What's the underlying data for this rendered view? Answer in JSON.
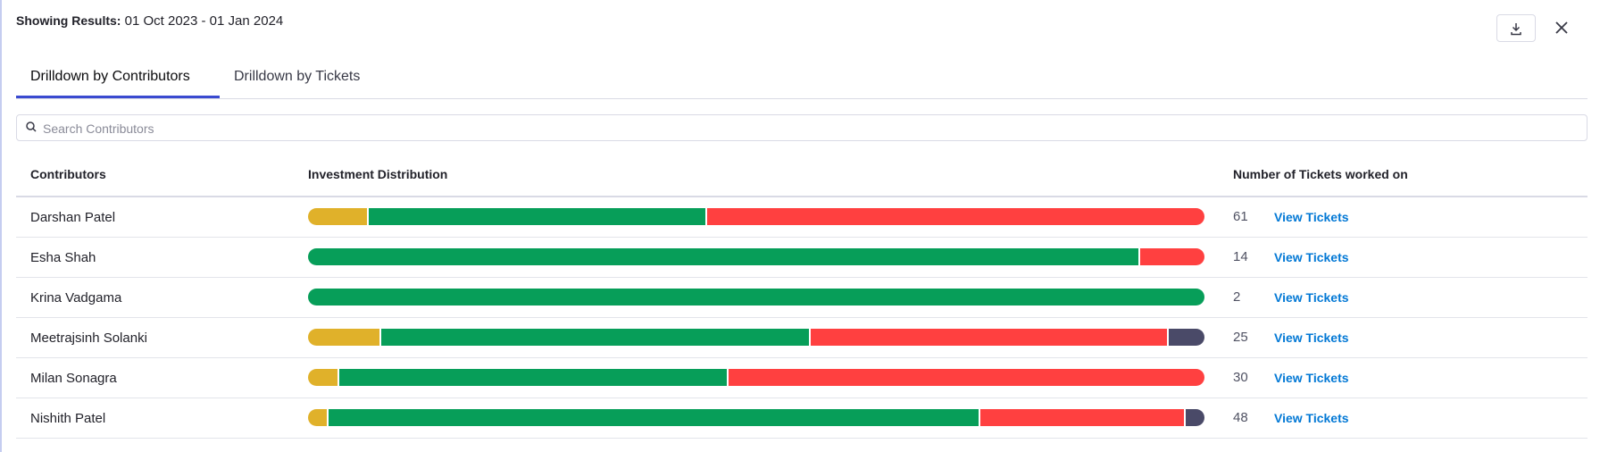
{
  "header": {
    "label": "Showing Results:",
    "range": "01 Oct 2023 - 01 Jan 2024"
  },
  "tabs": [
    "Drilldown by Contributors",
    "Drilldown by Tickets"
  ],
  "search_placeholder": "Search Contributors",
  "table": {
    "columns": [
      "Contributors",
      "Investment Distribution",
      "Number of Tickets worked on"
    ],
    "segment_colors": [
      "#e0b12a",
      "#079e59",
      "#ff4040",
      "#4a4a68"
    ],
    "rows": [
      {
        "name": "Darshan Patel",
        "distribution": [
          4,
          23,
          34,
          0
        ],
        "tickets": 61,
        "link": "View Tickets"
      },
      {
        "name": "Esha Shah",
        "distribution": [
          0,
          13,
          1,
          0
        ],
        "tickets": 14,
        "link": "View Tickets"
      },
      {
        "name": "Krina Vadgama",
        "distribution": [
          0,
          2,
          0,
          0
        ],
        "tickets": 2,
        "link": "View Tickets"
      },
      {
        "name": "Meetrajsinh Solanki",
        "distribution": [
          2,
          12,
          10,
          1
        ],
        "tickets": 25,
        "link": "View Tickets"
      },
      {
        "name": "Milan Sonagra",
        "distribution": [
          1,
          13,
          16,
          0
        ],
        "tickets": 30,
        "link": "View Tickets"
      },
      {
        "name": "Nishith Patel",
        "distribution": [
          1,
          35,
          11,
          1
        ],
        "tickets": 48,
        "link": "View Tickets"
      }
    ]
  }
}
